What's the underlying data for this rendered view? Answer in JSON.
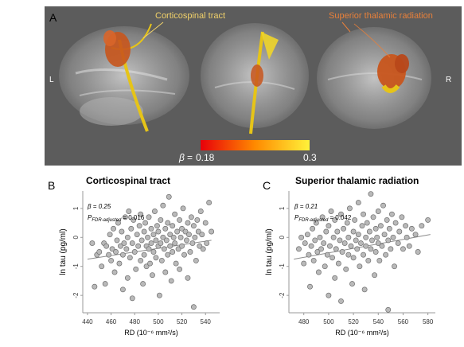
{
  "panel_a": {
    "label": "A",
    "tract1_name": "Corticospinal tract",
    "tract2_name": "Superior thalamic radiation",
    "side_left": "L",
    "side_right": "R",
    "colorbar": {
      "symbol": "β",
      "equals": "=",
      "min_label": "0.18",
      "max_label": "0.3",
      "color_min": "#e8000a",
      "color_mid": "#ff8a00",
      "color_max": "#fff23a"
    },
    "colors": {
      "background": "#5c5c5c",
      "cst_label": "#f2d26a",
      "str_label": "#e8803a",
      "cst_tract": "#e6c418",
      "str_tract": "#c8551c"
    }
  },
  "panel_b": {
    "label": "B",
    "title": "Corticospinal tract",
    "beta_text": "β = 0.25",
    "p_prefix": "P",
    "p_sub": "FDR-adjusted",
    "p_value": "= 0.016"
  },
  "panel_c": {
    "label": "C",
    "title": "Superior thalamic radiation",
    "beta_text": "β = 0.21",
    "p_prefix": "P",
    "p_sub": "FDR-adjusted",
    "p_value": "= 0.042"
  },
  "chart_data": [
    {
      "type": "scatter",
      "title": "Corticospinal tract",
      "xlabel": "RD (10⁻⁶ mm²/s)",
      "ylabel": "ln tau (pg/ml)",
      "xlim": [
        436,
        552
      ],
      "ylim": [
        -2.6,
        1.6
      ],
      "xticks": [
        440,
        460,
        480,
        500,
        520,
        540
      ],
      "yticks": [
        1,
        0,
        -1,
        -2
      ],
      "grid": false,
      "point_color": "#b9b9b9",
      "fit_line": {
        "x": [
          440,
          545
        ],
        "y": [
          -0.75,
          -0.1
        ]
      },
      "points": [
        [
          444,
          -0.2
        ],
        [
          446,
          -1.7
        ],
        [
          448,
          -0.6
        ],
        [
          450,
          -0.5
        ],
        [
          452,
          -1.0
        ],
        [
          454,
          -0.2
        ],
        [
          455,
          -1.6
        ],
        [
          456,
          -0.3
        ],
        [
          458,
          -0.6
        ],
        [
          459,
          0.1
        ],
        [
          460,
          -0.8
        ],
        [
          461,
          -0.4
        ],
        [
          462,
          0.3
        ],
        [
          463,
          -1.2
        ],
        [
          464,
          -0.5
        ],
        [
          465,
          -0.1
        ],
        [
          466,
          0.5
        ],
        [
          467,
          -0.9
        ],
        [
          468,
          -0.3
        ],
        [
          469,
          0.2
        ],
        [
          470,
          -0.6
        ],
        [
          470,
          -1.8
        ],
        [
          471,
          -0.2
        ],
        [
          472,
          0.7
        ],
        [
          473,
          -0.4
        ],
        [
          474,
          0.0
        ],
        [
          474,
          -1.4
        ],
        [
          475,
          0.9
        ],
        [
          476,
          -0.7
        ],
        [
          477,
          0.3
        ],
        [
          478,
          -0.2
        ],
        [
          478,
          -2.1
        ],
        [
          479,
          0.6
        ],
        [
          480,
          -0.5
        ],
        [
          481,
          -1.1
        ],
        [
          482,
          0.1
        ],
        [
          483,
          -0.3
        ],
        [
          484,
          0.4
        ],
        [
          485,
          -0.8
        ],
        [
          485,
          0.8
        ],
        [
          486,
          -0.1
        ],
        [
          487,
          -1.6
        ],
        [
          488,
          0.2
        ],
        [
          488,
          -0.6
        ],
        [
          489,
          0.5
        ],
        [
          490,
          -0.3
        ],
        [
          490,
          -1.0
        ],
        [
          491,
          0.0
        ],
        [
          492,
          0.7
        ],
        [
          492,
          -0.4
        ],
        [
          493,
          -0.9
        ],
        [
          494,
          0.3
        ],
        [
          494,
          -0.2
        ],
        [
          495,
          -1.3
        ],
        [
          496,
          0.1
        ],
        [
          496,
          -0.5
        ],
        [
          497,
          0.9
        ],
        [
          498,
          -0.1
        ],
        [
          498,
          -0.7
        ],
        [
          499,
          0.4
        ],
        [
          500,
          -0.3
        ],
        [
          500,
          0.2
        ],
        [
          501,
          -2.0
        ],
        [
          502,
          0.6
        ],
        [
          502,
          -0.2
        ],
        [
          503,
          -0.8
        ],
        [
          504,
          0.0
        ],
        [
          504,
          1.1
        ],
        [
          505,
          -0.4
        ],
        [
          506,
          0.3
        ],
        [
          506,
          -1.2
        ],
        [
          507,
          -0.1
        ],
        [
          508,
          0.5
        ],
        [
          508,
          -0.6
        ],
        [
          509,
          1.4
        ],
        [
          510,
          0.1
        ],
        [
          510,
          -0.3
        ],
        [
          511,
          -1.5
        ],
        [
          512,
          0.4
        ],
        [
          512,
          -0.5
        ],
        [
          513,
          0.0
        ],
        [
          514,
          0.8
        ],
        [
          514,
          -0.2
        ],
        [
          515,
          -0.9
        ],
        [
          516,
          0.2
        ],
        [
          517,
          -0.4
        ],
        [
          518,
          0.6
        ],
        [
          518,
          -1.1
        ],
        [
          519,
          0.0
        ],
        [
          520,
          0.3
        ],
        [
          520,
          -0.3
        ],
        [
          521,
          1.0
        ],
        [
          522,
          -0.6
        ],
        [
          523,
          0.2
        ],
        [
          524,
          -0.1
        ],
        [
          525,
          0.5
        ],
        [
          525,
          -1.4
        ],
        [
          526,
          0.1
        ],
        [
          527,
          -0.5
        ],
        [
          528,
          0.7
        ],
        [
          529,
          -0.2
        ],
        [
          530,
          0.4
        ],
        [
          530,
          -2.4
        ],
        [
          531,
          0.0
        ],
        [
          532,
          -0.8
        ],
        [
          533,
          0.6
        ],
        [
          534,
          0.2
        ],
        [
          535,
          -0.3
        ],
        [
          536,
          0.9
        ],
        [
          537,
          0.1
        ],
        [
          538,
          -0.4
        ],
        [
          540,
          0.5
        ],
        [
          541,
          -0.2
        ],
        [
          543,
          1.2
        ],
        [
          545,
          0.2
        ]
      ]
    },
    {
      "type": "scatter",
      "title": "Superior thalamic radiation",
      "xlabel": "RD (10⁻⁶ mm²/s)",
      "ylabel": "ln tau (pg/ml)",
      "xlim": [
        468,
        586
      ],
      "ylim": [
        -2.6,
        1.6
      ],
      "xticks": [
        480,
        500,
        520,
        540,
        560,
        580
      ],
      "yticks": [
        1,
        0,
        -1,
        -2
      ],
      "grid": false,
      "point_color": "#b9b9b9",
      "fit_line": {
        "x": [
          472,
          582
        ],
        "y": [
          -0.75,
          0.1
        ]
      },
      "points": [
        [
          476,
          -0.4
        ],
        [
          478,
          0.0
        ],
        [
          480,
          -0.9
        ],
        [
          481,
          -0.2
        ],
        [
          483,
          0.1
        ],
        [
          484,
          -0.6
        ],
        [
          485,
          -1.7
        ],
        [
          486,
          -0.3
        ],
        [
          487,
          0.3
        ],
        [
          488,
          -0.8
        ],
        [
          489,
          -0.1
        ],
        [
          490,
          0.5
        ],
        [
          491,
          -0.5
        ],
        [
          492,
          -1.2
        ],
        [
          493,
          0.0
        ],
        [
          494,
          -0.4
        ],
        [
          495,
          0.7
        ],
        [
          496,
          -0.2
        ],
        [
          497,
          -1.0
        ],
        [
          498,
          0.2
        ],
        [
          499,
          -0.6
        ],
        [
          500,
          -2.0
        ],
        [
          500,
          0.4
        ],
        [
          501,
          -0.3
        ],
        [
          502,
          0.9
        ],
        [
          503,
          -0.7
        ],
        [
          504,
          0.0
        ],
        [
          505,
          -1.4
        ],
        [
          505,
          0.6
        ],
        [
          506,
          -0.4
        ],
        [
          507,
          0.2
        ],
        [
          508,
          -0.9
        ],
        [
          509,
          -0.1
        ],
        [
          510,
          0.8
        ],
        [
          510,
          -2.2
        ],
        [
          511,
          -0.5
        ],
        [
          512,
          0.3
        ],
        [
          513,
          -0.2
        ],
        [
          514,
          -1.1
        ],
        [
          515,
          0.5
        ],
        [
          516,
          -0.6
        ],
        [
          516,
          0.0
        ],
        [
          517,
          1.0
        ],
        [
          518,
          -0.3
        ],
        [
          519,
          -1.6
        ],
        [
          520,
          0.2
        ],
        [
          520,
          -0.7
        ],
        [
          521,
          0.6
        ],
        [
          522,
          -0.1
        ],
        [
          523,
          -0.4
        ],
        [
          524,
          1.2
        ],
        [
          524,
          0.1
        ],
        [
          525,
          -1.0
        ],
        [
          526,
          -0.2
        ],
        [
          527,
          0.4
        ],
        [
          528,
          -0.6
        ],
        [
          528,
          0.8
        ],
        [
          529,
          -1.8
        ],
        [
          530,
          0.0
        ],
        [
          530,
          -0.3
        ],
        [
          531,
          0.5
        ],
        [
          532,
          -0.8
        ],
        [
          533,
          0.2
        ],
        [
          534,
          -0.4
        ],
        [
          534,
          1.5
        ],
        [
          535,
          -0.1
        ],
        [
          536,
          0.7
        ],
        [
          537,
          -1.3
        ],
        [
          538,
          0.3
        ],
        [
          538,
          -0.5
        ],
        [
          539,
          0.0
        ],
        [
          540,
          0.9
        ],
        [
          540,
          -0.2
        ],
        [
          541,
          -0.8
        ],
        [
          542,
          0.4
        ],
        [
          543,
          -0.3
        ],
        [
          544,
          1.1
        ],
        [
          545,
          0.1
        ],
        [
          546,
          -0.6
        ],
        [
          547,
          0.6
        ],
        [
          548,
          -0.1
        ],
        [
          548,
          -2.5
        ],
        [
          549,
          0.3
        ],
        [
          550,
          -0.4
        ],
        [
          551,
          0.8
        ],
        [
          552,
          0.0
        ],
        [
          553,
          -1.0
        ],
        [
          554,
          0.5
        ],
        [
          556,
          -0.2
        ],
        [
          557,
          0.2
        ],
        [
          559,
          0.7
        ],
        [
          560,
          -0.4
        ],
        [
          562,
          0.4
        ],
        [
          563,
          0.0
        ],
        [
          565,
          -0.3
        ],
        [
          567,
          0.3
        ],
        [
          570,
          0.1
        ],
        [
          572,
          -0.5
        ],
        [
          575,
          0.4
        ],
        [
          580,
          0.6
        ]
      ]
    }
  ]
}
